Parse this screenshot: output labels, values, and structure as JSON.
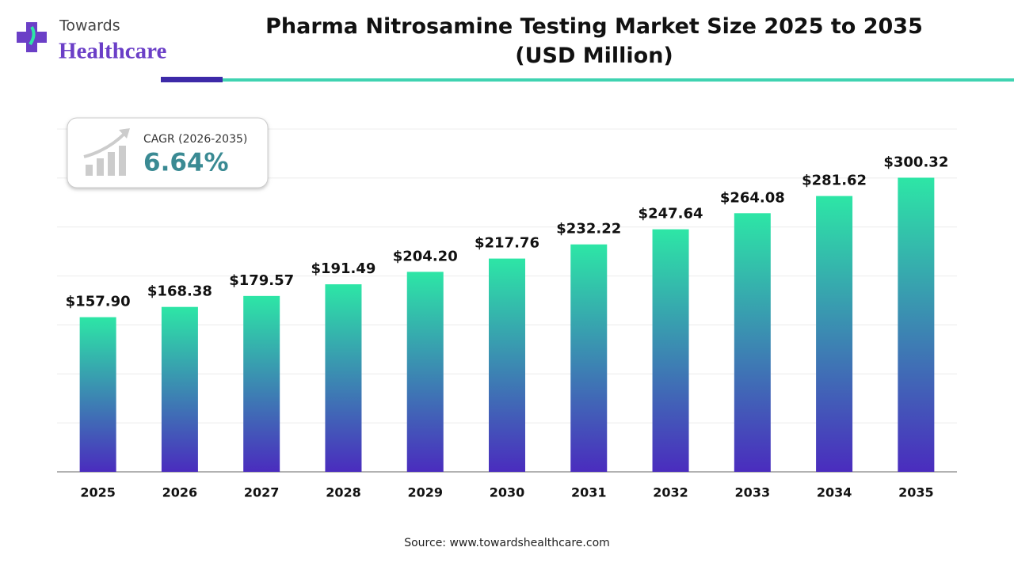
{
  "logo": {
    "line1": "Towards",
    "line2": "Healthcare"
  },
  "cagr": {
    "label": "CAGR (2026-2035)",
    "value": "6.64%"
  },
  "source": "Source: www.towardshealthcare.com",
  "chart_data": {
    "type": "bar",
    "title": [
      "Pharma Nitrosamine Testing Market Size 2025 to 2035",
      "(USD Million)"
    ],
    "categories": [
      "2025",
      "2026",
      "2027",
      "2028",
      "2029",
      "2030",
      "2031",
      "2032",
      "2033",
      "2034",
      "2035"
    ],
    "values": [
      157.9,
      168.38,
      179.57,
      191.49,
      204.2,
      217.76,
      232.22,
      247.64,
      264.08,
      281.62,
      300.32
    ],
    "value_labels": [
      "$157.90",
      "$168.38",
      "$179.57",
      "$191.49",
      "$204.20",
      "$217.76",
      "$232.22",
      "$247.64",
      "$264.08",
      "$281.62",
      "$300.32"
    ],
    "colors": [
      "#2de6a6",
      "#4a2cbe"
    ],
    "ylim": [
      0,
      350
    ],
    "grid": true
  }
}
